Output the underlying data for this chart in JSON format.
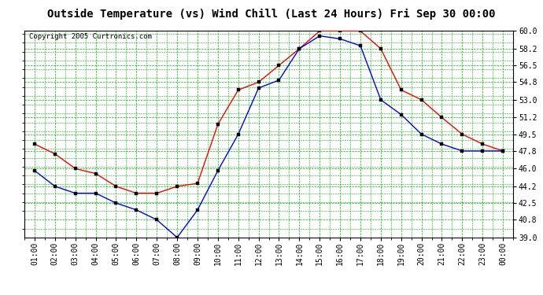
{
  "title": "Outside Temperature (vs) Wind Chill (Last 24 Hours) Fri Sep 30 00:00",
  "copyright": "Copyright 2005 Curtronics.com",
  "x_labels": [
    "01:00",
    "02:00",
    "03:00",
    "04:00",
    "05:00",
    "06:00",
    "07:00",
    "08:00",
    "09:00",
    "10:00",
    "11:00",
    "12:00",
    "13:00",
    "14:00",
    "15:00",
    "16:00",
    "17:00",
    "18:00",
    "19:00",
    "20:00",
    "21:00",
    "22:00",
    "23:00",
    "00:00"
  ],
  "outside_temp": [
    48.5,
    47.5,
    46.0,
    45.5,
    44.2,
    43.5,
    43.5,
    44.2,
    44.5,
    50.5,
    54.0,
    54.8,
    56.5,
    58.2,
    60.0,
    60.0,
    60.0,
    58.2,
    54.0,
    53.0,
    51.2,
    49.5,
    48.5,
    47.8
  ],
  "wind_chill": [
    45.8,
    44.2,
    43.5,
    43.5,
    42.5,
    41.8,
    40.8,
    39.0,
    41.8,
    45.8,
    49.5,
    54.2,
    55.0,
    58.2,
    59.5,
    59.2,
    58.5,
    53.0,
    51.5,
    49.5,
    48.5,
    47.8,
    47.8,
    47.8
  ],
  "ylim": [
    39.0,
    60.0
  ],
  "yticks": [
    39.0,
    40.8,
    42.5,
    44.2,
    46.0,
    47.8,
    49.5,
    51.2,
    53.0,
    54.8,
    56.5,
    58.2,
    60.0
  ],
  "temp_color": "#ff0000",
  "chill_color": "#0000ff",
  "bg_color": "#ffffff",
  "plot_bg_color": "#ffffff",
  "grid_major_color": "#00bb00",
  "grid_minor_color": "#00bb00",
  "title_fontsize": 10,
  "copyright_fontsize": 6.5,
  "tick_fontsize": 7
}
